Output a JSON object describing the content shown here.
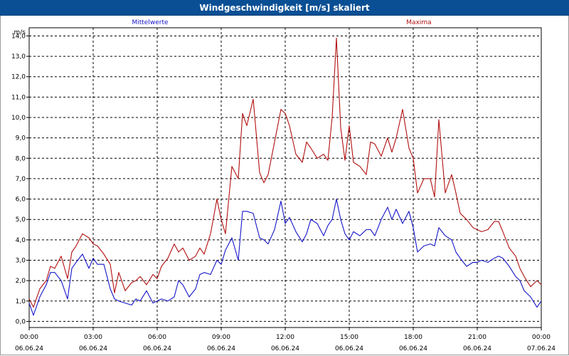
{
  "title": "Windgeschwindigkeit [m/s] skaliert",
  "chart_data": {
    "type": "line",
    "title": "Windgeschwindigkeit [m/s] skaliert",
    "ylabel": "m/s",
    "xlabel": "",
    "ylim": [
      -0.3,
      14.4
    ],
    "y_ticks": [
      "0,0",
      "1,0",
      "2,0",
      "3,0",
      "4,0",
      "5,0",
      "6,0",
      "7,0",
      "8,0",
      "9,0",
      "10,0",
      "11,0",
      "12,0",
      "13,0",
      "14,0"
    ],
    "x_ticks": [
      {
        "time": "00:00",
        "date": "06.06.24"
      },
      {
        "time": "03:00",
        "date": "06.06.24"
      },
      {
        "time": "06:00",
        "date": "06.06.24"
      },
      {
        "time": "09:00",
        "date": "06.06.24"
      },
      {
        "time": "12:00",
        "date": "06.06.24"
      },
      {
        "time": "15:00",
        "date": "06.06.24"
      },
      {
        "time": "18:00",
        "date": "06.06.24"
      },
      {
        "time": "21:00",
        "date": "06.06.24"
      },
      {
        "time": "00:00",
        "date": "07.06.24"
      }
    ],
    "x_unit": "hours since 06.06.24 00:00",
    "grid": true,
    "series": [
      {
        "name": "Mittelwerte",
        "color": "#1515c8",
        "x": [
          0,
          0.2,
          0.5,
          0.8,
          1.0,
          1.2,
          1.5,
          1.8,
          2.0,
          2.2,
          2.5,
          2.8,
          3.0,
          3.2,
          3.5,
          3.8,
          4.0,
          4.2,
          4.5,
          4.8,
          5.0,
          5.2,
          5.5,
          5.8,
          6.0,
          6.2,
          6.5,
          6.8,
          7.0,
          7.2,
          7.5,
          7.8,
          8.0,
          8.2,
          8.5,
          8.8,
          9.0,
          9.2,
          9.5,
          9.8,
          10.0,
          10.2,
          10.5,
          10.8,
          11.0,
          11.2,
          11.5,
          11.8,
          12.0,
          12.2,
          12.5,
          12.8,
          13.0,
          13.2,
          13.5,
          13.8,
          14.0,
          14.2,
          14.4,
          14.6,
          14.8,
          15.0,
          15.2,
          15.5,
          15.8,
          16.0,
          16.2,
          16.5,
          16.8,
          17.0,
          17.2,
          17.5,
          17.8,
          18.0,
          18.2,
          18.5,
          18.8,
          19.0,
          19.2,
          19.5,
          19.8,
          20.0,
          20.2,
          20.5,
          20.8,
          21.0,
          21.2,
          21.5,
          21.8,
          22.0,
          22.2,
          22.5,
          22.8,
          23.0,
          23.2,
          23.5,
          23.8,
          24.0
        ],
        "values": [
          0.9,
          0.3,
          1.2,
          1.8,
          2.4,
          2.4,
          2.0,
          1.1,
          2.6,
          2.9,
          3.3,
          2.6,
          3.1,
          2.8,
          2.8,
          1.6,
          1.1,
          1.0,
          0.9,
          0.8,
          1.1,
          1.0,
          1.5,
          0.9,
          1.0,
          1.1,
          1.0,
          1.2,
          2.0,
          1.8,
          1.2,
          1.6,
          2.3,
          2.4,
          2.3,
          3.0,
          2.8,
          3.5,
          4.1,
          3.0,
          5.4,
          5.4,
          5.3,
          4.1,
          4.0,
          3.8,
          4.5,
          5.9,
          4.8,
          5.1,
          4.4,
          3.9,
          4.3,
          5.0,
          4.8,
          4.2,
          4.7,
          5.0,
          6.0,
          5.0,
          4.3,
          4.0,
          4.4,
          4.2,
          4.5,
          4.5,
          4.2,
          5.0,
          5.6,
          5.0,
          5.5,
          4.8,
          5.4,
          4.6,
          3.4,
          3.7,
          3.8,
          3.7,
          4.6,
          4.2,
          4.0,
          3.4,
          3.1,
          2.7,
          2.9,
          2.9,
          3.0,
          2.9,
          3.1,
          3.2,
          3.1,
          2.7,
          2.2,
          2.0,
          1.5,
          1.2,
          0.7,
          1.0
        ]
      },
      {
        "name": "Maxima",
        "color": "#b21010",
        "x": [
          0,
          0.2,
          0.5,
          0.8,
          1.0,
          1.2,
          1.5,
          1.8,
          2.0,
          2.2,
          2.5,
          2.8,
          3.0,
          3.2,
          3.5,
          3.8,
          4.0,
          4.2,
          4.5,
          4.8,
          5.0,
          5.2,
          5.5,
          5.8,
          6.0,
          6.2,
          6.5,
          6.8,
          7.0,
          7.2,
          7.5,
          7.8,
          8.0,
          8.2,
          8.5,
          8.8,
          9.0,
          9.2,
          9.5,
          9.8,
          10.0,
          10.2,
          10.5,
          10.8,
          11.0,
          11.2,
          11.5,
          11.8,
          12.0,
          12.2,
          12.5,
          12.8,
          13.0,
          13.2,
          13.5,
          13.8,
          14.0,
          14.2,
          14.4,
          14.6,
          14.8,
          15.0,
          15.2,
          15.5,
          15.8,
          16.0,
          16.2,
          16.5,
          16.8,
          17.0,
          17.2,
          17.5,
          17.8,
          18.0,
          18.2,
          18.5,
          18.8,
          19.0,
          19.2,
          19.5,
          19.8,
          20.0,
          20.2,
          20.5,
          20.8,
          21.0,
          21.2,
          21.5,
          21.8,
          22.0,
          22.2,
          22.5,
          22.8,
          23.0,
          23.2,
          23.5,
          23.8,
          24.0
        ],
        "values": [
          1.1,
          0.7,
          1.6,
          2.0,
          2.7,
          2.6,
          3.2,
          2.1,
          3.4,
          3.7,
          4.3,
          4.1,
          3.8,
          3.7,
          3.3,
          2.8,
          1.4,
          2.4,
          1.5,
          1.9,
          2.0,
          2.2,
          1.8,
          2.3,
          2.1,
          2.7,
          3.1,
          3.8,
          3.4,
          3.6,
          3.0,
          3.2,
          3.6,
          3.3,
          4.3,
          6.0,
          5.0,
          4.3,
          7.6,
          7.0,
          10.2,
          9.6,
          10.9,
          7.3,
          6.8,
          7.2,
          8.8,
          10.4,
          10.2,
          9.6,
          8.2,
          7.8,
          8.8,
          8.5,
          8.0,
          8.2,
          7.9,
          10.0,
          13.9,
          9.5,
          7.9,
          9.6,
          7.8,
          7.6,
          7.2,
          8.8,
          8.7,
          8.1,
          9.0,
          8.3,
          9.0,
          10.4,
          8.5,
          8.0,
          6.3,
          7.0,
          7.0,
          6.1,
          9.9,
          6.3,
          7.2,
          6.3,
          5.3,
          5.0,
          4.6,
          4.5,
          4.4,
          4.5,
          4.9,
          4.9,
          4.4,
          3.6,
          3.2,
          2.6,
          2.2,
          1.7,
          2.0,
          1.8
        ]
      }
    ]
  }
}
